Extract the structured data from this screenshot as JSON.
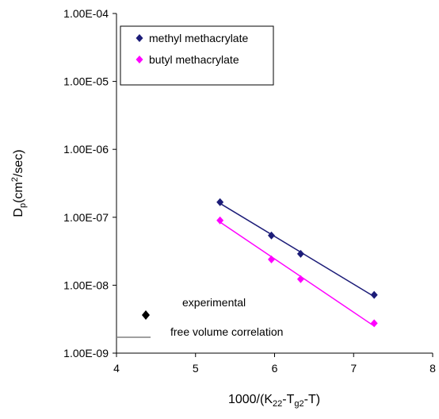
{
  "chart_data": {
    "type": "scatter",
    "x_label": {
      "main": "1000/(K",
      "sub1": "22",
      "mid": "-T",
      "sub2": "g2",
      "end": "-T)"
    },
    "y_label": {
      "main": "D",
      "sub": "p",
      "mid": "(cm",
      "sup": "2",
      "end": "/sec)"
    },
    "log_y": true,
    "xlim": [
      4,
      8
    ],
    "xticks": [
      4,
      5,
      6,
      7,
      8
    ],
    "ylim": [
      1e-09,
      0.0001
    ],
    "yticks": [
      {
        "value": 1e-09,
        "label": "1.00E-09"
      },
      {
        "value": 1e-08,
        "label": "1.00E-08"
      },
      {
        "value": 1e-07,
        "label": "1.00E-07"
      },
      {
        "value": 1e-06,
        "label": "1.00E-06"
      },
      {
        "value": 1e-05,
        "label": "1.00E-05"
      },
      {
        "value": 0.0001,
        "label": "1.00E-04"
      }
    ],
    "legend_position": "upper left",
    "series": [
      {
        "name": "methyl methacrylate",
        "color": "#1c1c78",
        "x": [
          5.31,
          5.96,
          6.33,
          7.26
        ],
        "values": [
          1.67e-07,
          5.4e-08,
          2.9e-08,
          7.2e-09
        ],
        "fit": {
          "x": [
            5.31,
            7.26
          ],
          "values": [
            1.6e-07,
            6.8e-09
          ]
        }
      },
      {
        "name": "butyl methacrylate",
        "color": "#ff00ff",
        "x": [
          5.31,
          5.96,
          6.33,
          7.26
        ],
        "values": [
          9e-08,
          2.4e-08,
          1.23e-08,
          2.75e-09
        ],
        "fit": {
          "x": [
            5.31,
            7.26
          ],
          "values": [
            8.5e-08,
            2.5e-09
          ]
        }
      }
    ],
    "annotations": [
      "experimental",
      "free volume correlation"
    ]
  }
}
